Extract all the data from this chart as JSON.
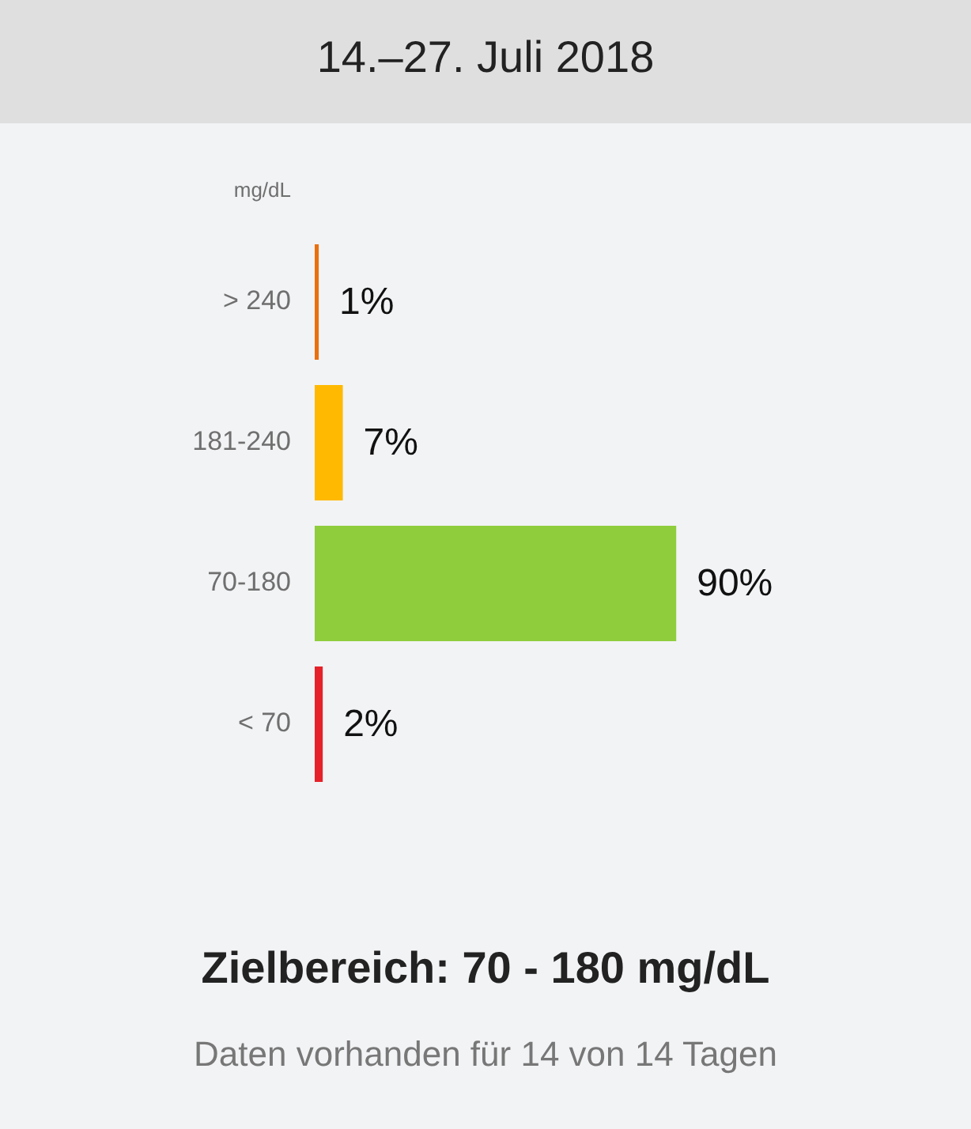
{
  "chart_data": {
    "type": "bar",
    "orientation": "horizontal",
    "title": "14.–27. Juli 2018",
    "ylabel": "mg/dL",
    "categories": [
      "> 240",
      "181-240",
      "70-180",
      "< 70"
    ],
    "values": [
      1,
      7,
      90,
      2
    ],
    "colors": [
      "#e8700e",
      "#ffb900",
      "#8fcd3c",
      "#e52229"
    ],
    "value_labels": [
      "1%",
      "7%",
      "90%",
      "2%"
    ],
    "tick_labels": "y",
    "annotations": [
      "Zielbereich: 70 - 180 mg/dL",
      "Daten vorhanden für 14 von 14 Tagen"
    ]
  }
}
